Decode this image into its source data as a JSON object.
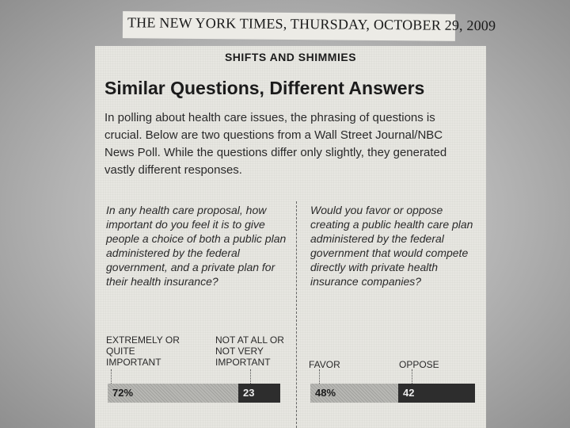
{
  "masthead": "THE NEW YORK TIMES, THURSDAY, OCTOBER 29, 2009",
  "kicker": "SHIFTS AND SHIMMIES",
  "headline": "Similar Questions, Different Answers",
  "intro": "In polling about health care issues, the phrasing of questions is crucial. Below are two questions from a Wall Street Journal/NBC News Poll. While the questions differ only slightly, they generated vastly different responses.",
  "questions": [
    {
      "text": "In any health care proposal, how important do you feel it is to give people a choice of both a public plan administered by the federal government, and a private plan for their health insurance?",
      "responses": [
        {
          "label": "EXTREMELY OR QUITE IMPORTANT",
          "value_label": "72%",
          "value": 72,
          "shade": "light"
        },
        {
          "label": "NOT AT ALL OR NOT VERY IMPORTANT",
          "value_label": "23",
          "value": 23,
          "shade": "dark"
        }
      ]
    },
    {
      "text": "Would you favor or oppose creating a public health care plan administered by the federal government that would compete directly with private health insurance companies?",
      "responses": [
        {
          "label": "FAVOR",
          "value_label": "48%",
          "value": 48,
          "shade": "light"
        },
        {
          "label": "OPPOSE",
          "value_label": "42",
          "value": 42,
          "shade": "dark"
        }
      ]
    }
  ],
  "colors": {
    "paper": "#e7e6e1",
    "light_bar": "#b8b8b4",
    "dark_bar": "#2d2d2d"
  }
}
